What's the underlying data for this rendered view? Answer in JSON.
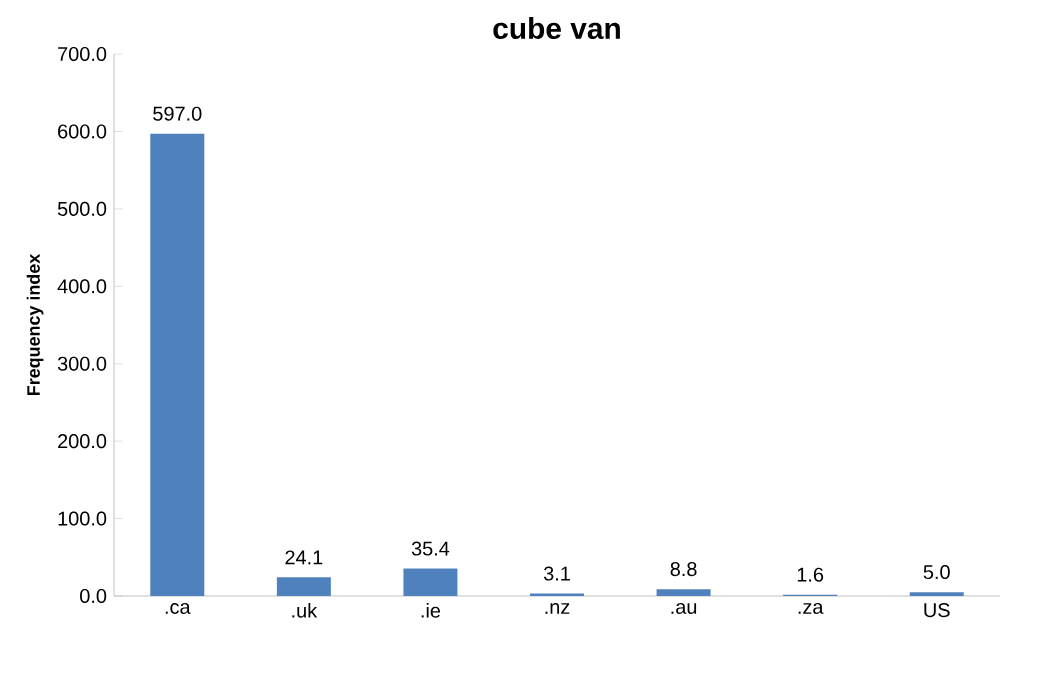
{
  "chart_data": {
    "type": "bar",
    "title": "cube van",
    "ylabel": "Frequency index",
    "categories": [
      ".ca",
      ".uk",
      ".ie",
      ".nz",
      ".au",
      ".za",
      "US"
    ],
    "values": [
      597.0,
      24.1,
      35.4,
      3.1,
      8.8,
      1.6,
      5.0
    ],
    "value_labels": [
      "597.0",
      "24.1",
      "35.4",
      "3.1",
      "8.8",
      "1.6",
      "5.0"
    ],
    "color": "#4f81bd",
    "ylim": [
      0,
      700
    ],
    "yticks": [
      {
        "value": 0,
        "label": "0.0"
      },
      {
        "value": 100,
        "label": "100.0"
      },
      {
        "value": 200,
        "label": "200.0"
      },
      {
        "value": 300,
        "label": "300.0"
      },
      {
        "value": 400,
        "label": "400.0"
      },
      {
        "value": 500,
        "label": "500.0"
      },
      {
        "value": 600,
        "label": "600.0"
      },
      {
        "value": 700,
        "label": "700.0"
      }
    ],
    "grid": false
  }
}
